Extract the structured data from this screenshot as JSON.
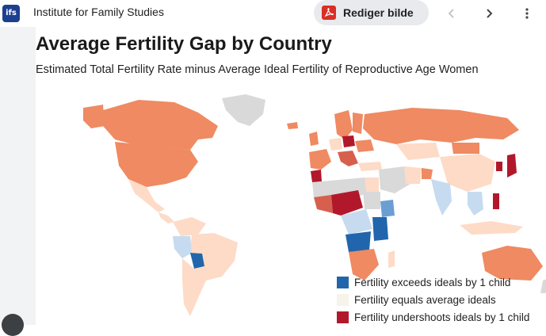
{
  "header": {
    "site_logo": "ifs",
    "site_name": "Institute for Family Studies",
    "edit_label": "Rediger bilde",
    "icons": {
      "edit": "pdf-icon",
      "prev": "chevron-left-icon",
      "next": "chevron-right-icon",
      "more": "more-vert-icon"
    }
  },
  "figure": {
    "title": "Average Fertility Gap by Country",
    "subtitle": "Estimated Total Fertility Rate minus Average Ideal Fertility of Reproductive Age Women",
    "legend": [
      {
        "label": "Fertility exceeds ideals by 1 child",
        "color": "#2166ac"
      },
      {
        "label": "Fertility equals average ideals",
        "color": "#f7f2ea"
      },
      {
        "label": "Fertility undershoots ideals by 1 child",
        "color": "#b2182b"
      }
    ],
    "colors": {
      "no_data": "#d9d9d9",
      "undershoot_mid": "#ef8a62",
      "undershoot_light": "#fddbc7",
      "exceed_mid": "#6a9fd4",
      "exceed_light": "#c6dbef"
    }
  }
}
